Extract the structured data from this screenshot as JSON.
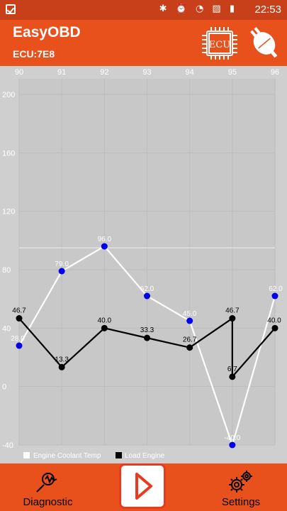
{
  "statusbar": {
    "time": "22:53",
    "icons": "✱ ⏰ ◔ ▨ ▮"
  },
  "app": {
    "title": "EasyOBD",
    "ecu": "ECU:7E8",
    "ecu_chip_label": "ECU"
  },
  "colors": {
    "appbar": "#e8501c",
    "statusbar": "#c8401a",
    "series1": "#ffffff",
    "series2": "#000000",
    "points1": "#0000ee"
  },
  "chart_data": {
    "type": "line",
    "x": [
      90,
      91,
      92,
      93,
      94,
      95,
      95,
      96
    ],
    "ylim": [
      -40,
      200
    ],
    "yticks": [
      -40,
      0,
      40,
      80,
      120,
      160,
      200
    ],
    "xticks": [
      90,
      91,
      92,
      93,
      94,
      95,
      96
    ],
    "threshold": 95,
    "series": [
      {
        "name": "Engine Coolant Temp",
        "x": [
          90,
          91,
          92,
          93,
          94,
          95,
          96
        ],
        "values": [
          28.0,
          79.0,
          96.0,
          62.0,
          45.0,
          -40.0,
          62.0
        ],
        "labels": [
          "28.0",
          "79.0",
          "96.0",
          "62.0",
          "45.0",
          "-40.0",
          "62.0"
        ]
      },
      {
        "name": "Load Engine",
        "x": [
          90,
          91,
          92,
          93,
          94,
          95,
          95,
          96
        ],
        "values": [
          46.7,
          13.3,
          40.0,
          33.3,
          26.7,
          46.7,
          6.7,
          40.0
        ],
        "labels": [
          "46.7",
          "13.3",
          "40.0",
          "33.3",
          "26.7",
          "46.7",
          "6.7",
          "40.0"
        ]
      }
    ],
    "legend": "bottom-left"
  },
  "nav": {
    "diagnostic": "Diagnostic",
    "settings": "Settings"
  }
}
